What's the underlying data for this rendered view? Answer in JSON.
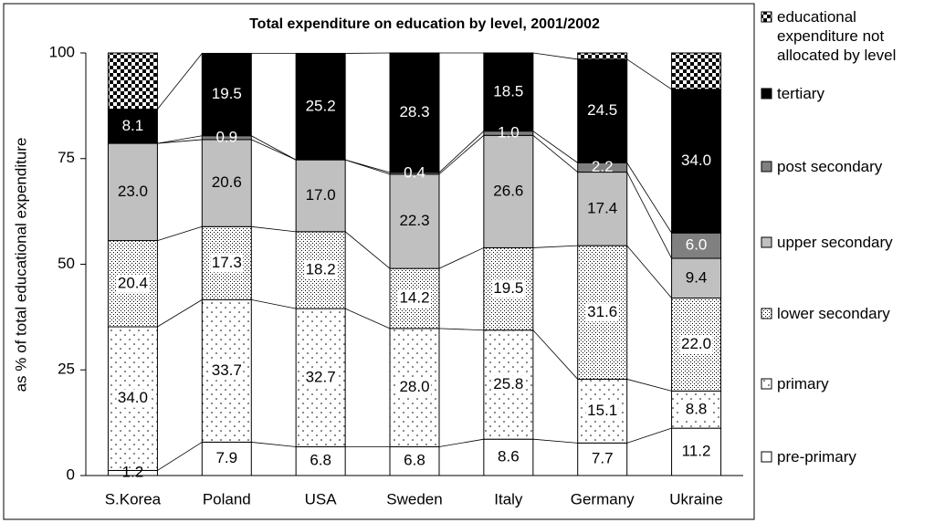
{
  "chart_data": {
    "type": "stacked-bar",
    "title": "Total expenditure on education by level, 2001/2002",
    "y_label": "as % of total educational expenditure",
    "categories": [
      "S.Korea",
      "Poland",
      "USA",
      "Sweden",
      "Italy",
      "Germany",
      "Ukraine"
    ],
    "ylim": [
      0,
      100
    ],
    "yticks": [
      0,
      25,
      50,
      75,
      100
    ],
    "grid": false,
    "series": [
      {
        "name": "pre-primary",
        "color": "#ffffff",
        "pattern": "none",
        "values": [
          1.2,
          7.9,
          6.8,
          6.8,
          8.6,
          7.7,
          11.2
        ],
        "value_labels": [
          "1.2",
          "7.9",
          "6.8",
          "6.8",
          "8.6",
          "7.7",
          "11.2"
        ]
      },
      {
        "name": "primary",
        "color": "#ffffff",
        "pattern": "dots-sparse",
        "values": [
          34.0,
          33.7,
          32.7,
          28.0,
          25.8,
          15.1,
          8.8
        ],
        "value_labels": [
          "34.0",
          "33.7",
          "32.7",
          "28.0",
          "25.8",
          "15.1",
          "8.8"
        ]
      },
      {
        "name": "lower secondary",
        "color": "#ffffff",
        "pattern": "dots-dense",
        "values": [
          20.4,
          17.3,
          18.2,
          14.2,
          19.5,
          31.6,
          22.0
        ],
        "value_labels": [
          "20.4",
          "17.3",
          "18.2",
          "14.2",
          "19.5",
          "31.6",
          "22.0"
        ]
      },
      {
        "name": "upper secondary",
        "color": "#c0c0c0",
        "pattern": "none",
        "values": [
          23.0,
          20.6,
          17.0,
          22.3,
          26.6,
          17.4,
          9.4
        ],
        "value_labels": [
          "23.0",
          "20.6",
          "17.0",
          "22.3",
          "26.6",
          "17.4",
          "9.4"
        ]
      },
      {
        "name": "post secondary",
        "color": "#808080",
        "pattern": "none",
        "values": [
          null,
          0.9,
          null,
          0.4,
          1.0,
          2.2,
          6.0
        ],
        "value_labels": [
          null,
          "0.9",
          null,
          "0.4",
          "1.0",
          "2.2",
          "6.0"
        ]
      },
      {
        "name": "tertiary",
        "color": "#000000",
        "pattern": "none",
        "values": [
          8.1,
          19.5,
          25.2,
          28.3,
          18.5,
          24.5,
          34.0
        ],
        "value_labels": [
          "8.1",
          "19.5",
          "25.2",
          "28.3",
          "18.5",
          "24.5",
          "34.0"
        ]
      },
      {
        "name": "educational expenditure not allocated by level",
        "color": "#000000",
        "pattern": "checker",
        "values": [
          13.3,
          null,
          null,
          null,
          null,
          1.5,
          8.6
        ]
      }
    ]
  }
}
